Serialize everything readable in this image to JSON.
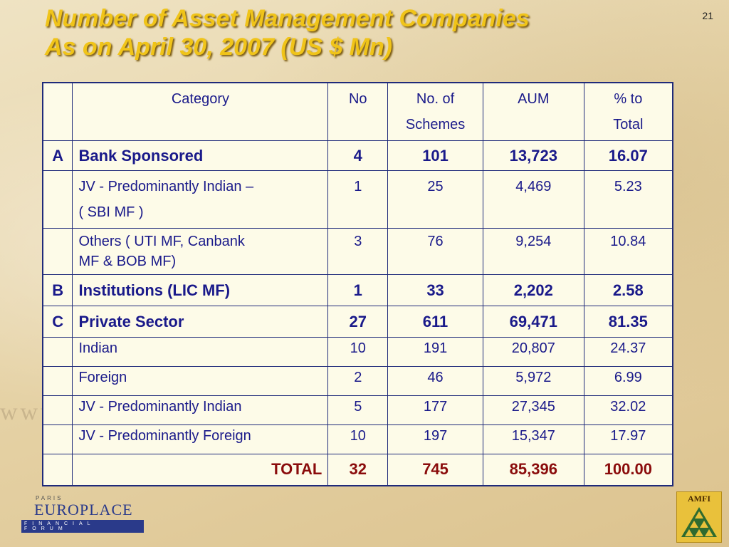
{
  "slide": {
    "title_line1": "Number of Asset Management Companies",
    "title_line2": "As on April 30, 2007 (US $ Mn)",
    "page_number": "21"
  },
  "watermark_text": "www",
  "table": {
    "headers": {
      "category": "Category",
      "no": "No",
      "schemes_line1": "No. of",
      "schemes_line2": "Schemes",
      "aum": "AUM",
      "pct_line1": "% to",
      "pct_line2": "Total"
    },
    "rows": [
      {
        "id": "A",
        "category": "Bank Sponsored",
        "no": "4",
        "schemes": "101",
        "aum": "13,723",
        "pct": "16.07"
      },
      {
        "id": "",
        "category_line1": "JV - Predominantly Indian –",
        "category_line2": "( SBI MF )",
        "no": "1",
        "schemes": "25",
        "aum": "4,469",
        "pct": "5.23"
      },
      {
        "id": "",
        "category_line1": "Others ( UTI  MF, Canbank",
        "category_line2": "MF & BOB MF)",
        "no": "3",
        "schemes": "76",
        "aum": "9,254",
        "pct": "10.84"
      },
      {
        "id": "B",
        "category": "Institutions (LIC MF)",
        "no": "1",
        "schemes": "33",
        "aum": "2,202",
        "pct": "2.58"
      },
      {
        "id": "C",
        "category": "Private Sector",
        "no": "27",
        "schemes": "611",
        "aum": "69,471",
        "pct": "81.35"
      },
      {
        "id": "",
        "category": "Indian",
        "no": "10",
        "schemes": "191",
        "aum": "20,807",
        "pct": "24.37"
      },
      {
        "id": "",
        "category": "Foreign",
        "no": "2",
        "schemes": "46",
        "aum": "5,972",
        "pct": "6.99"
      },
      {
        "id": "",
        "category": "JV - Predominantly Indian",
        "no": "5",
        "schemes": "177",
        "aum": "27,345",
        "pct": "32.02"
      },
      {
        "id": "",
        "category": "JV - Predominantly Foreign",
        "no": "10",
        "schemes": "197",
        "aum": "15,347",
        "pct": "17.97"
      }
    ],
    "total": {
      "label": "TOTAL",
      "no": "32",
      "schemes": "745",
      "aum": "85,396",
      "pct": "100.00"
    }
  },
  "logos": {
    "europlace_top": "PARIS",
    "europlace_main": "EUROPLACE",
    "europlace_bar": "FINANCIAL FORUM",
    "amfi": "AMFI"
  },
  "colors": {
    "title": "#f0c419",
    "table_text": "#1a1a8a",
    "total_text": "#8a0b0b",
    "border": "#1f2a7a"
  }
}
